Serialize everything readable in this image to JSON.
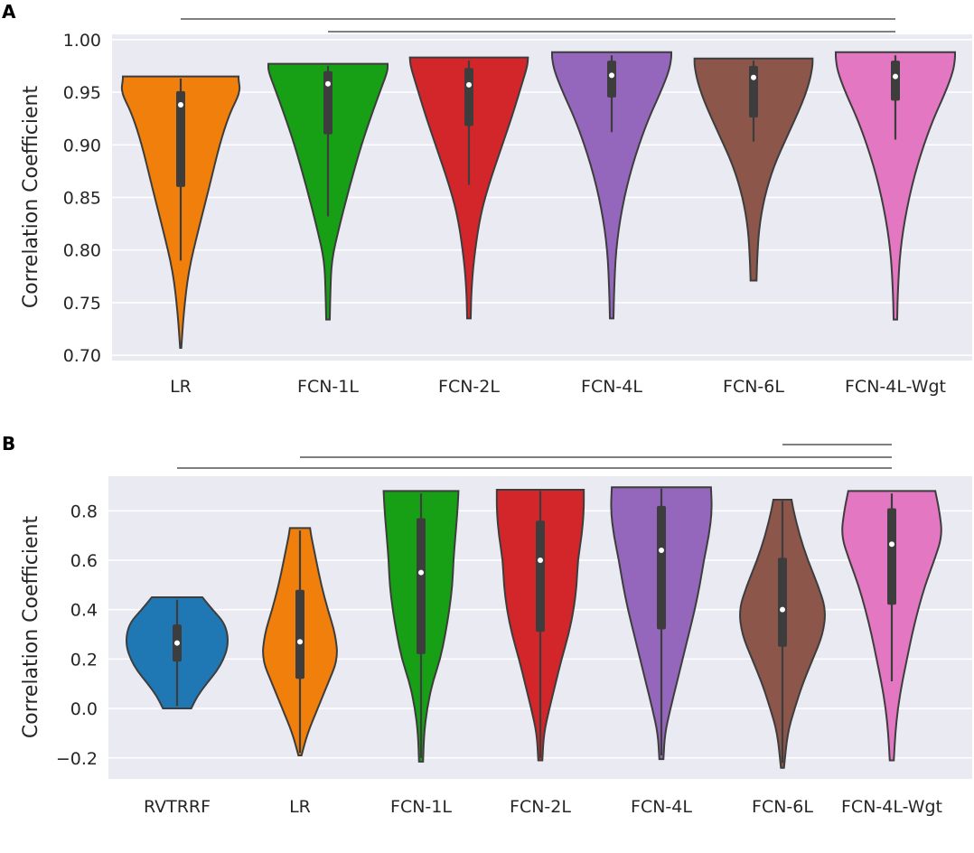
{
  "chart_data": [
    {
      "panel": "A",
      "type": "violin",
      "ylabel": "Correlation Coefficient",
      "ylim": [
        0.695,
        1.005
      ],
      "yticks": [
        "0.70",
        "0.75",
        "0.80",
        "0.85",
        "0.90",
        "0.95",
        "1.00"
      ],
      "grid": true,
      "categories": [
        "LR",
        "FCN-1L",
        "FCN-2L",
        "FCN-4L",
        "FCN-6L",
        "FCN-4L-Wgt"
      ],
      "colors": [
        "#F17F0B",
        "#17A016",
        "#D3262B",
        "#9467BC",
        "#8C564B",
        "#E377C1"
      ],
      "violins": [
        {
          "min": 0.707,
          "max": 0.965,
          "median": 0.938,
          "q1": 0.86,
          "q3": 0.951,
          "wlo": 0.79,
          "whi": 0.963,
          "profile": [
            [
              0.707,
              0.01
            ],
            [
              0.74,
              0.05
            ],
            [
              0.78,
              0.13
            ],
            [
              0.82,
              0.3
            ],
            [
              0.86,
              0.48
            ],
            [
              0.9,
              0.65
            ],
            [
              0.93,
              0.82
            ],
            [
              0.95,
              1.0
            ],
            [
              0.962,
              0.97
            ],
            [
              0.965,
              0.97
            ]
          ]
        },
        {
          "min": 0.734,
          "max": 0.977,
          "median": 0.958,
          "q1": 0.91,
          "q3": 0.97,
          "wlo": 0.832,
          "whi": 0.975,
          "profile": [
            [
              0.734,
              0.03
            ],
            [
              0.76,
              0.04
            ],
            [
              0.79,
              0.06
            ],
            [
              0.82,
              0.18
            ],
            [
              0.86,
              0.36
            ],
            [
              0.9,
              0.56
            ],
            [
              0.93,
              0.74
            ],
            [
              0.955,
              0.9
            ],
            [
              0.97,
              1.0
            ],
            [
              0.977,
              1.0
            ]
          ]
        },
        {
          "min": 0.735,
          "max": 0.983,
          "median": 0.957,
          "q1": 0.918,
          "q3": 0.973,
          "wlo": 0.862,
          "whi": 0.98,
          "profile": [
            [
              0.735,
              0.03
            ],
            [
              0.76,
              0.04
            ],
            [
              0.79,
              0.08
            ],
            [
              0.83,
              0.18
            ],
            [
              0.86,
              0.32
            ],
            [
              0.9,
              0.56
            ],
            [
              0.93,
              0.74
            ],
            [
              0.96,
              0.9
            ],
            [
              0.975,
              0.98
            ],
            [
              0.983,
              0.99
            ]
          ]
        },
        {
          "min": 0.735,
          "max": 0.988,
          "median": 0.966,
          "q1": 0.945,
          "q3": 0.98,
          "wlo": 0.912,
          "whi": 0.985,
          "profile": [
            [
              0.735,
              0.03
            ],
            [
              0.76,
              0.04
            ],
            [
              0.8,
              0.07
            ],
            [
              0.84,
              0.17
            ],
            [
              0.88,
              0.34
            ],
            [
              0.92,
              0.58
            ],
            [
              0.95,
              0.82
            ],
            [
              0.97,
              0.96
            ],
            [
              0.982,
              1.0
            ],
            [
              0.988,
              1.0
            ]
          ]
        },
        {
          "min": 0.771,
          "max": 0.982,
          "median": 0.964,
          "q1": 0.926,
          "q3": 0.975,
          "wlo": 0.903,
          "whi": 0.98,
          "profile": [
            [
              0.771,
              0.05
            ],
            [
              0.79,
              0.06
            ],
            [
              0.82,
              0.09
            ],
            [
              0.85,
              0.18
            ],
            [
              0.88,
              0.34
            ],
            [
              0.91,
              0.58
            ],
            [
              0.94,
              0.82
            ],
            [
              0.96,
              0.94
            ],
            [
              0.975,
              0.99
            ],
            [
              0.982,
              0.99
            ]
          ]
        },
        {
          "min": 0.734,
          "max": 0.988,
          "median": 0.965,
          "q1": 0.942,
          "q3": 0.98,
          "wlo": 0.905,
          "whi": 0.985,
          "profile": [
            [
              0.734,
              0.03
            ],
            [
              0.76,
              0.04
            ],
            [
              0.8,
              0.08
            ],
            [
              0.84,
              0.19
            ],
            [
              0.88,
              0.36
            ],
            [
              0.92,
              0.6
            ],
            [
              0.95,
              0.84
            ],
            [
              0.97,
              0.97
            ],
            [
              0.982,
              1.0
            ],
            [
              0.988,
              1.0
            ]
          ]
        }
      ],
      "brackets": [
        {
          "from": 1,
          "to": 5,
          "level": 1
        },
        {
          "from": 0,
          "to": 5,
          "level": 0
        }
      ]
    },
    {
      "panel": "B",
      "type": "violin",
      "ylabel": "Correlation Coefficient",
      "ylim": [
        -0.285,
        0.94
      ],
      "yticks": [
        "−0.2",
        "0.0",
        "0.2",
        "0.4",
        "0.6",
        "0.8"
      ],
      "ytick_values": [
        -0.2,
        0.0,
        0.2,
        0.4,
        0.6,
        0.8
      ],
      "grid": true,
      "categories": [
        "RVTRRF",
        "LR",
        "FCN-1L",
        "FCN-2L",
        "FCN-4L",
        "FCN-6L",
        "FCN-4L-Wgt"
      ],
      "colors": [
        "#1F77B4",
        "#F17F0B",
        "#17A016",
        "#D3262B",
        "#9467BC",
        "#8C564B",
        "#E377C1"
      ],
      "violins": [
        {
          "min": 0.0,
          "max": 0.45,
          "median": 0.265,
          "q1": 0.19,
          "q3": 0.34,
          "wlo": 0.01,
          "whi": 0.44,
          "profile": [
            [
              0.0,
              0.28
            ],
            [
              0.05,
              0.4
            ],
            [
              0.1,
              0.58
            ],
            [
              0.15,
              0.78
            ],
            [
              0.2,
              0.92
            ],
            [
              0.25,
              1.0
            ],
            [
              0.3,
              1.0
            ],
            [
              0.35,
              0.92
            ],
            [
              0.4,
              0.7
            ],
            [
              0.45,
              0.5
            ]
          ]
        },
        {
          "min": -0.19,
          "max": 0.73,
          "median": 0.27,
          "q1": 0.12,
          "q3": 0.48,
          "wlo": -0.18,
          "whi": 0.72,
          "profile": [
            [
              -0.19,
              0.03
            ],
            [
              -0.1,
              0.15
            ],
            [
              0.0,
              0.35
            ],
            [
              0.1,
              0.55
            ],
            [
              0.2,
              0.75
            ],
            [
              0.3,
              0.7
            ],
            [
              0.4,
              0.55
            ],
            [
              0.5,
              0.42
            ],
            [
              0.6,
              0.32
            ],
            [
              0.7,
              0.22
            ],
            [
              0.73,
              0.2
            ]
          ]
        },
        {
          "min": -0.215,
          "max": 0.88,
          "median": 0.55,
          "q1": 0.22,
          "q3": 0.77,
          "wlo": -0.2,
          "whi": 0.87,
          "profile": [
            [
              -0.215,
              0.04
            ],
            [
              -0.1,
              0.06
            ],
            [
              0.0,
              0.12
            ],
            [
              0.1,
              0.22
            ],
            [
              0.2,
              0.38
            ],
            [
              0.3,
              0.48
            ],
            [
              0.4,
              0.56
            ],
            [
              0.5,
              0.62
            ],
            [
              0.6,
              0.64
            ],
            [
              0.7,
              0.68
            ],
            [
              0.8,
              0.72
            ],
            [
              0.88,
              0.74
            ]
          ]
        },
        {
          "min": -0.21,
          "max": 0.885,
          "median": 0.6,
          "q1": 0.31,
          "q3": 0.76,
          "wlo": -0.2,
          "whi": 0.88,
          "profile": [
            [
              -0.21,
              0.04
            ],
            [
              -0.1,
              0.07
            ],
            [
              0.0,
              0.18
            ],
            [
              0.1,
              0.3
            ],
            [
              0.2,
              0.42
            ],
            [
              0.3,
              0.56
            ],
            [
              0.4,
              0.66
            ],
            [
              0.5,
              0.72
            ],
            [
              0.6,
              0.74
            ],
            [
              0.7,
              0.82
            ],
            [
              0.8,
              0.86
            ],
            [
              0.885,
              0.86
            ]
          ]
        },
        {
          "min": -0.205,
          "max": 0.895,
          "median": 0.64,
          "q1": 0.32,
          "q3": 0.82,
          "wlo": -0.19,
          "whi": 0.89,
          "profile": [
            [
              -0.205,
              0.04
            ],
            [
              -0.1,
              0.07
            ],
            [
              0.0,
              0.18
            ],
            [
              0.1,
              0.3
            ],
            [
              0.2,
              0.42
            ],
            [
              0.3,
              0.54
            ],
            [
              0.4,
              0.66
            ],
            [
              0.5,
              0.76
            ],
            [
              0.6,
              0.84
            ],
            [
              0.7,
              0.94
            ],
            [
              0.8,
              1.0
            ],
            [
              0.895,
              0.98
            ]
          ]
        },
        {
          "min": -0.24,
          "max": 0.845,
          "median": 0.4,
          "q1": 0.25,
          "q3": 0.61,
          "wlo": -0.22,
          "whi": 0.84,
          "profile": [
            [
              -0.24,
              0.03
            ],
            [
              -0.1,
              0.1
            ],
            [
              0.0,
              0.24
            ],
            [
              0.1,
              0.4
            ],
            [
              0.2,
              0.6
            ],
            [
              0.3,
              0.8
            ],
            [
              0.4,
              0.86
            ],
            [
              0.5,
              0.7
            ],
            [
              0.6,
              0.5
            ],
            [
              0.7,
              0.34
            ],
            [
              0.8,
              0.22
            ],
            [
              0.845,
              0.18
            ]
          ]
        },
        {
          "min": -0.21,
          "max": 0.88,
          "median": 0.665,
          "q1": 0.42,
          "q3": 0.81,
          "wlo": 0.11,
          "whi": 0.87,
          "profile": [
            [
              -0.21,
              0.04
            ],
            [
              -0.1,
              0.07
            ],
            [
              0.0,
              0.12
            ],
            [
              0.1,
              0.2
            ],
            [
              0.2,
              0.3
            ],
            [
              0.3,
              0.4
            ],
            [
              0.4,
              0.52
            ],
            [
              0.5,
              0.66
            ],
            [
              0.6,
              0.84
            ],
            [
              0.7,
              1.0
            ],
            [
              0.8,
              0.94
            ],
            [
              0.88,
              0.86
            ]
          ]
        }
      ],
      "brackets": [
        {
          "from": 5,
          "to": 6,
          "level": 2
        },
        {
          "from": 1,
          "to": 6,
          "level": 1
        },
        {
          "from": 0,
          "to": 6,
          "level": 0
        }
      ]
    }
  ]
}
